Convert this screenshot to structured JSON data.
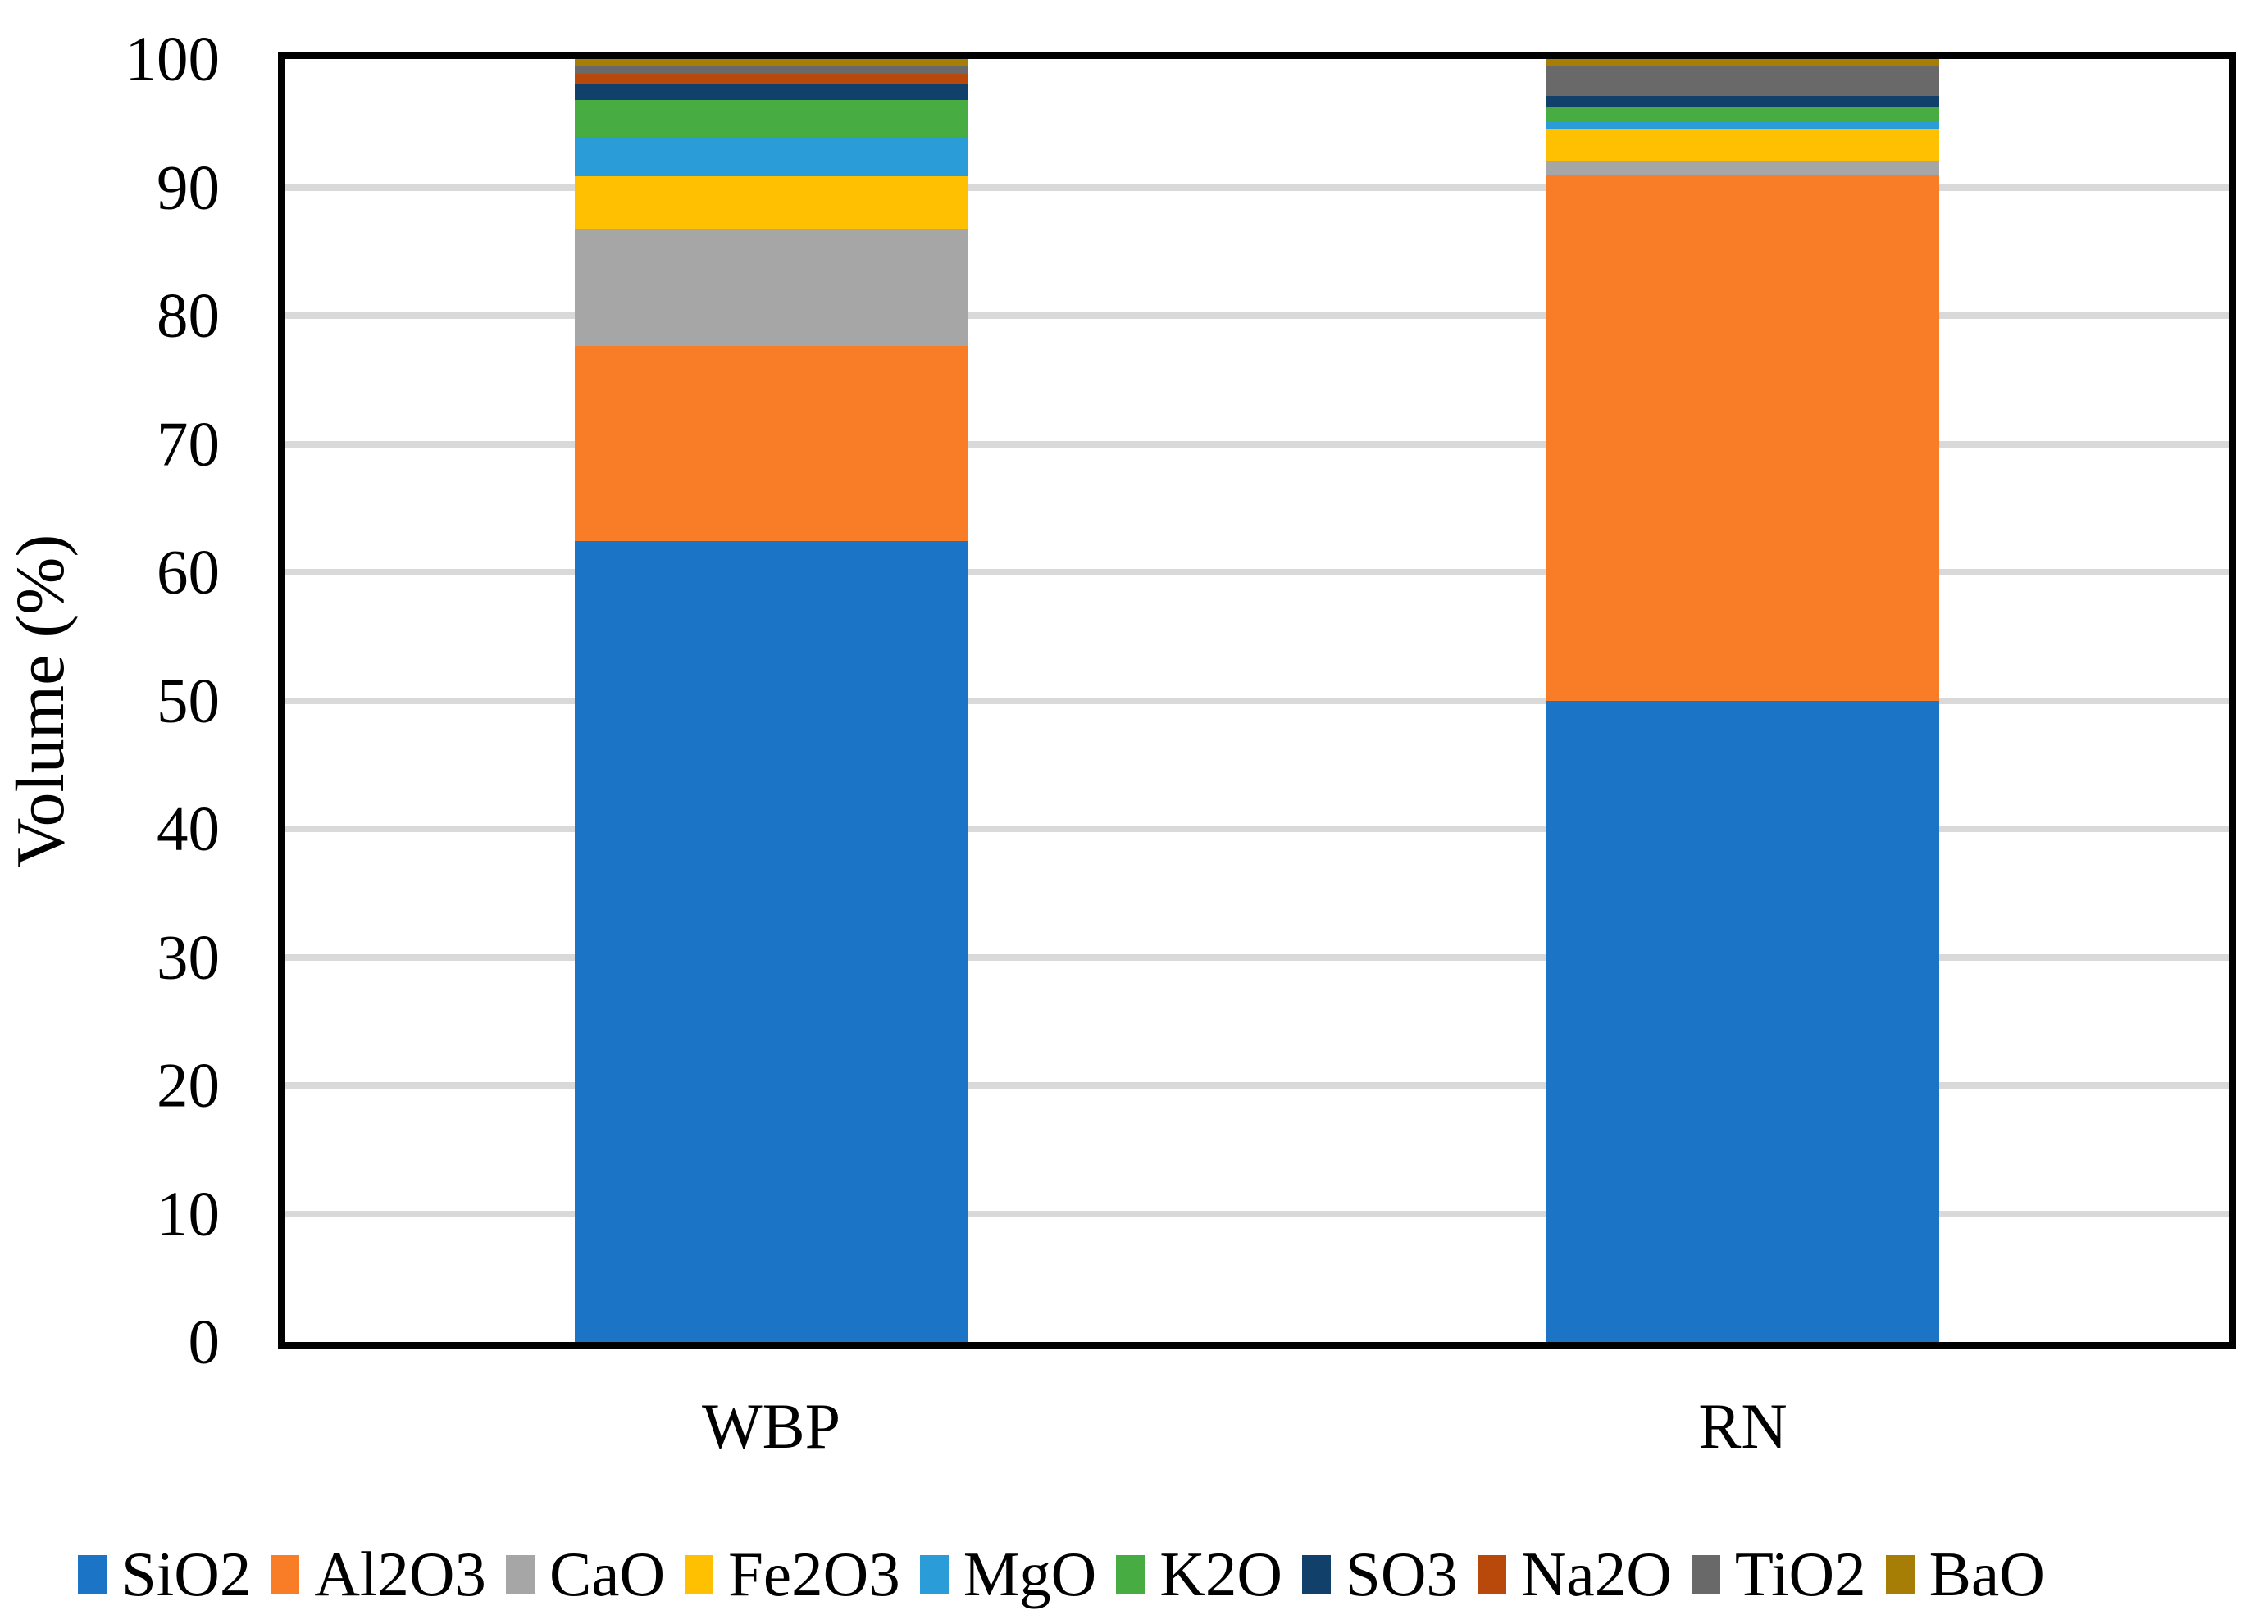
{
  "chart_data": {
    "type": "bar",
    "stacked": true,
    "title": "",
    "xlabel": "",
    "ylabel": "Volume (%)",
    "ylim": [
      0,
      100
    ],
    "yticks": [
      0,
      10,
      20,
      30,
      40,
      50,
      60,
      70,
      80,
      90,
      100
    ],
    "grid": true,
    "gridline_color": "#d9d9d9",
    "axis_color": "#000000",
    "legend_position": "bottom",
    "categories": [
      "WBP",
      "RN"
    ],
    "series": [
      {
        "name": "SiO2",
        "color": "#1b74c6",
        "values": [
          62.4,
          50.0
        ]
      },
      {
        "name": "Al2O3",
        "color": "#f97d27",
        "values": [
          15.25,
          41.0
        ]
      },
      {
        "name": "CaO",
        "color": "#a6a6a6",
        "values": [
          9.1,
          1.0
        ]
      },
      {
        "name": "Fe2O3",
        "color": "#ffc002",
        "values": [
          4.1,
          2.6
        ]
      },
      {
        "name": "MgO",
        "color": "#2a9dd8",
        "values": [
          3.1,
          0.55
        ]
      },
      {
        "name": "K2O",
        "color": "#47ac42",
        "values": [
          2.85,
          1.1
        ]
      },
      {
        "name": "SO3",
        "color": "#11406b",
        "values": [
          1.3,
          0.85
        ]
      },
      {
        "name": "Na2O",
        "color": "#b8490b",
        "values": [
          0.75,
          0.0
        ]
      },
      {
        "name": "TiO2",
        "color": "#696969",
        "values": [
          0.55,
          2.4
        ]
      },
      {
        "name": "BaO",
        "color": "#a67e05",
        "values": [
          0.6,
          0.5
        ]
      }
    ]
  }
}
